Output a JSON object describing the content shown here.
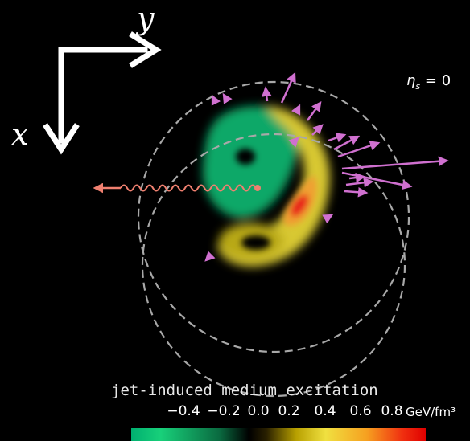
{
  "axes": {
    "x_label": "x",
    "y_label": "y"
  },
  "eta_label": {
    "symbol": "η",
    "subscript": "s",
    "value": "= 0"
  },
  "colorbar": {
    "title": "jet-induced medium excitation",
    "ticks": [
      "−0.4",
      "−0.2",
      "0.0",
      "0.2",
      "0.4",
      "0.6",
      "0.8"
    ],
    "unit": "GeV/fm³",
    "colors": {
      "negative": "#18d07a",
      "zero": "#000000",
      "low_positive": "#f0e040",
      "high_positive": "#e00000"
    }
  },
  "colors": {
    "background": "#000000",
    "arrows": "#d070d0",
    "jet": "#f08070",
    "circles": "#a8a8a8",
    "axes": "#ffffff"
  }
}
